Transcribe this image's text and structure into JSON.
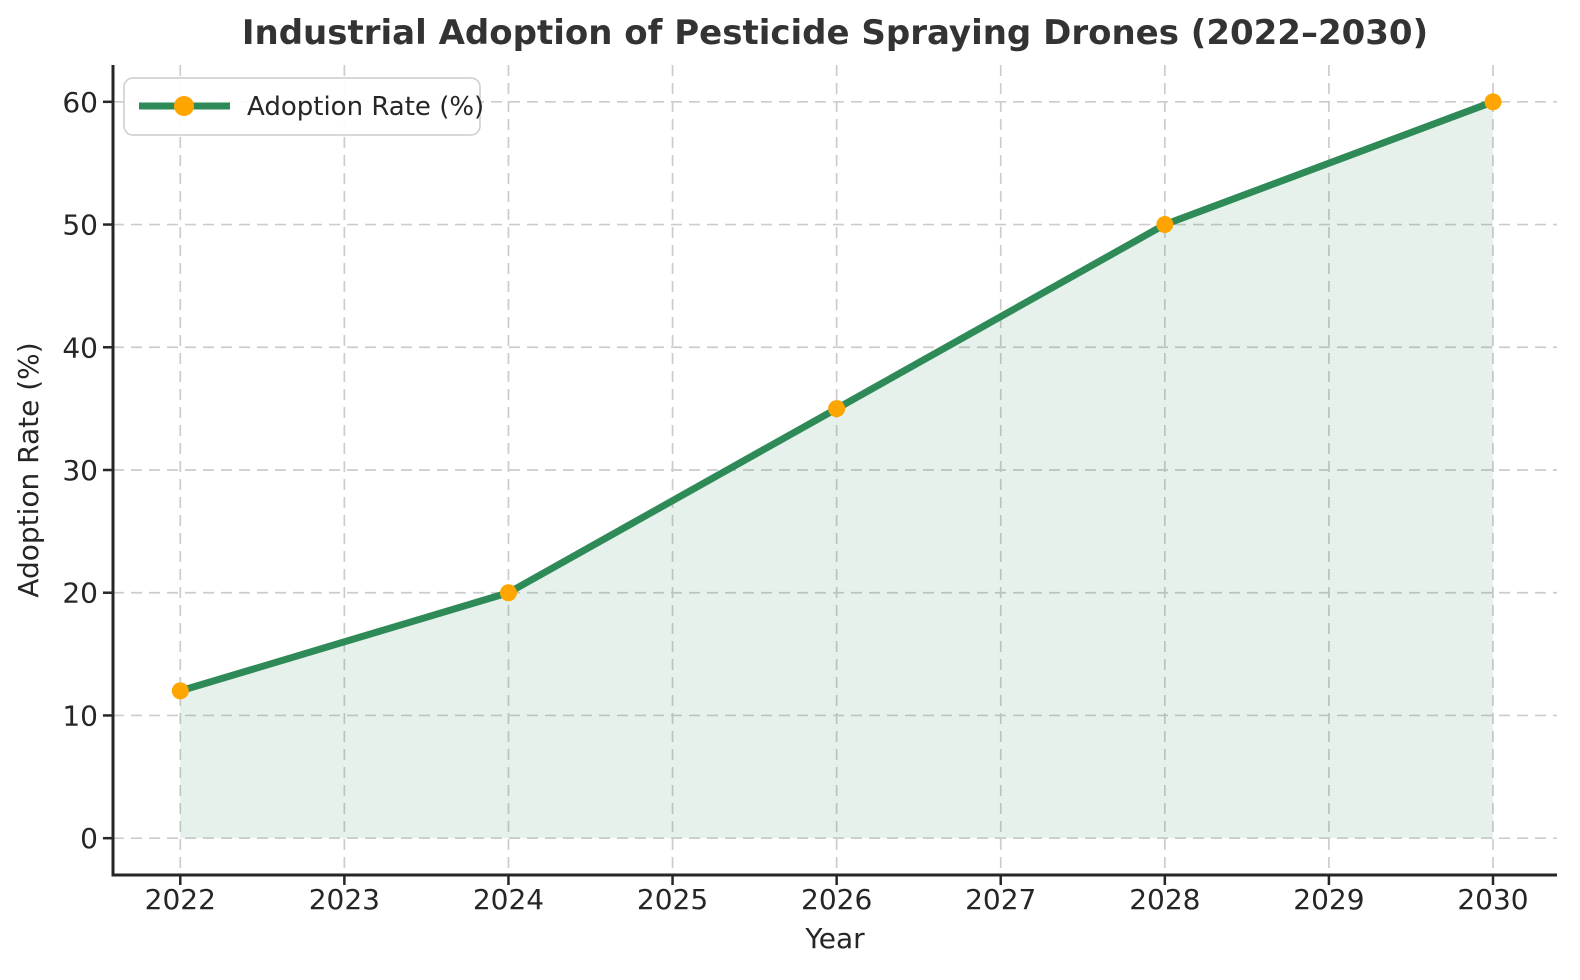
{
  "figure": {
    "background": "#ffffff"
  },
  "chart_data": {
    "type": "line",
    "title": "Industrial Adoption of Pesticide Spraying Drones (2022–2030)",
    "xlabel": "Year",
    "ylabel": "Adoption Rate (%)",
    "series": [
      {
        "name": "Adoption Rate (%)",
        "x": [
          2022,
          2024,
          2026,
          2028,
          2030
        ],
        "y": [
          12,
          20,
          35,
          50,
          60
        ],
        "line_color": "#2E8B57",
        "line_width": 7,
        "marker": "circle",
        "marker_color": "#FFA500",
        "marker_radius": 8.5,
        "area_fill": true,
        "area_fill_color": "#2E8B57",
        "area_fill_opacity": 0.12,
        "area_baseline": 0
      }
    ],
    "x_ticks": [
      2022,
      2023,
      2024,
      2025,
      2026,
      2027,
      2028,
      2029,
      2030
    ],
    "y_ticks": [
      0,
      10,
      20,
      30,
      40,
      50,
      60
    ],
    "xlim": [
      2021.59,
      2030.39
    ],
    "ylim": [
      -3,
      63
    ],
    "grid": {
      "visible": true,
      "style": "dashed",
      "color": "#cccccc"
    },
    "legend": {
      "visible": true,
      "position": "upper-left",
      "label": "Adoption Rate (%)"
    },
    "colors": {
      "text": "#333333",
      "tick_text": "#262626",
      "spine": "#262626"
    }
  }
}
